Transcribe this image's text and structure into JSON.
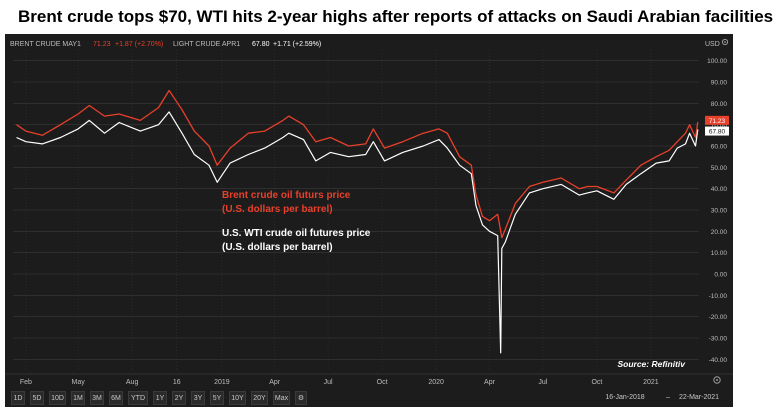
{
  "headline": "Brent crude tops $70, WTI hits 2-year highs after reports of attacks on Saudi Arabian facilities",
  "legend": {
    "brent_label": "BRENT CRUDE MAY1",
    "brent_value": "71.23",
    "brent_change": "+1.87 (+2.70%)",
    "wti_label": "LIGHT CRUDE APR1",
    "wti_value": "67.80",
    "wti_change": "+1.71 (+2.59%)",
    "currency": "USD"
  },
  "annotations": {
    "brent_line1": "Brent crude oil futurs price",
    "brent_line2": "(U.S. dollars per barrel)",
    "wti_line1": "U.S. WTI crude oil  futures price",
    "wti_line2": "(U.S. dollars per barrel)",
    "source": "Source: Refinitiv"
  },
  "last_price_tags": {
    "brent": "71.23",
    "wti": "67.80"
  },
  "range_buttons": [
    "1D",
    "5D",
    "10D",
    "1M",
    "3M",
    "6M",
    "YTD",
    "1Y",
    "2Y",
    "3Y",
    "5Y",
    "10Y",
    "20Y",
    "Max"
  ],
  "date_range": {
    "start": "16-Jan-2018",
    "end": "22-Mar-2021"
  },
  "colors": {
    "background": "#1c1c1c",
    "brent": "#e8402a",
    "wti": "#ffffff",
    "grid": "#3a3a3a",
    "axis_text": "#bdbdbd"
  },
  "chart_data": {
    "type": "line",
    "title": "Brent crude tops $70, WTI hits 2-year highs after reports of attacks on Saudi Arabian facilities",
    "xlabel": "",
    "ylabel": "USD",
    "x_ticks": [
      "Feb",
      "May",
      "Aug",
      "16",
      "2019",
      "Apr",
      "Jul",
      "Oct",
      "2020",
      "Apr",
      "Jul",
      "Oct",
      "2021"
    ],
    "y_ticks": [
      "100.00",
      "90.00",
      "80.00",
      "70.00",
      "60.00",
      "50.00",
      "40.00",
      "30.00",
      "20.00",
      "10.00",
      "0.00",
      "-10.00",
      "-20.00",
      "-30.00",
      "-40.00"
    ],
    "ylim": [
      -45,
      105
    ],
    "grid": true,
    "x": [
      "2018-01-16",
      "2018-02-01",
      "2018-03-01",
      "2018-04-01",
      "2018-05-01",
      "2018-05-20",
      "2018-06-15",
      "2018-07-10",
      "2018-08-15",
      "2018-09-15",
      "2018-10-03",
      "2018-10-25",
      "2018-11-15",
      "2018-12-10",
      "2018-12-24",
      "2019-01-15",
      "2019-02-15",
      "2019-03-15",
      "2019-04-15",
      "2019-04-25",
      "2019-05-20",
      "2019-06-10",
      "2019-07-05",
      "2019-08-05",
      "2019-09-03",
      "2019-09-16",
      "2019-10-05",
      "2019-11-05",
      "2019-12-10",
      "2020-01-06",
      "2020-01-20",
      "2020-02-10",
      "2020-03-01",
      "2020-03-09",
      "2020-03-20",
      "2020-04-01",
      "2020-04-15",
      "2020-04-20",
      "2020-04-22",
      "2020-04-28",
      "2020-05-15",
      "2020-06-08",
      "2020-07-01",
      "2020-08-01",
      "2020-09-01",
      "2020-09-15",
      "2020-10-01",
      "2020-10-30",
      "2020-11-20",
      "2020-12-15",
      "2021-01-10",
      "2021-02-01",
      "2021-02-15",
      "2021-03-01",
      "2021-03-08",
      "2021-03-18",
      "2021-03-22"
    ],
    "series": [
      {
        "name": "BRENT CRUDE MAY1",
        "color": "#e8402a",
        "values": [
          70,
          67,
          65,
          70,
          75,
          79,
          74,
          75,
          72,
          78,
          86,
          77,
          67,
          60,
          51,
          59,
          66,
          67,
          72,
          74,
          70,
          62,
          64,
          60,
          61,
          68,
          59,
          62,
          66,
          68,
          66,
          55,
          51,
          37,
          27,
          25,
          28,
          20,
          17,
          21,
          33,
          41,
          43,
          45,
          40,
          41,
          41,
          38,
          44,
          51,
          55,
          58,
          62,
          66,
          70,
          64,
          71.23
        ]
      },
      {
        "name": "LIGHT CRUDE APR1",
        "color": "#ffffff",
        "values": [
          64,
          62,
          61,
          64,
          68,
          72,
          66,
          71,
          67,
          70,
          76,
          66,
          56,
          51,
          43,
          52,
          56,
          59,
          64,
          66,
          63,
          53,
          57,
          55,
          56,
          62,
          53,
          57,
          60,
          63,
          59,
          51,
          47,
          32,
          23,
          20,
          18,
          -37,
          12,
          15,
          28,
          38,
          40,
          42,
          37,
          38,
          39,
          35,
          42,
          47,
          52,
          53,
          59,
          61,
          66,
          60,
          67.8
        ]
      }
    ]
  }
}
